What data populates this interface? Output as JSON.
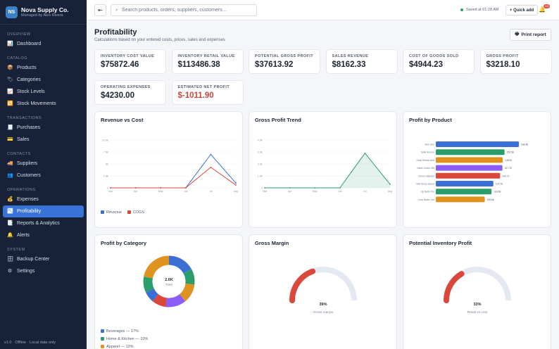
{
  "brand": {
    "logo": "NS",
    "name": "Nova Supply Co.",
    "sub": "Managed by Alex Rivera"
  },
  "sidebar": {
    "sections": [
      {
        "label": "OVERVIEW",
        "items": [
          {
            "label": "Dashboard",
            "icon": "chart-icon"
          }
        ]
      },
      {
        "label": "CATALOG",
        "items": [
          {
            "label": "Products",
            "icon": "box-icon"
          },
          {
            "label": "Categories",
            "icon": "tag-icon"
          },
          {
            "label": "Stock Levels",
            "icon": "trend-icon"
          },
          {
            "label": "Stock Movements",
            "icon": "swap-icon"
          }
        ]
      },
      {
        "label": "TRANSACTIONS",
        "items": [
          {
            "label": "Purchases",
            "icon": "receipt-icon"
          },
          {
            "label": "Sales",
            "icon": "card-icon"
          }
        ]
      },
      {
        "label": "CONTACTS",
        "items": [
          {
            "label": "Suppliers",
            "icon": "truck-icon"
          },
          {
            "label": "Customers",
            "icon": "people-icon"
          }
        ]
      },
      {
        "label": "OPERATIONS",
        "items": [
          {
            "label": "Expenses",
            "icon": "money-bag-icon"
          },
          {
            "label": "Profitability",
            "icon": "profit-chart-icon",
            "active": true
          },
          {
            "label": "Reports & Analytics",
            "icon": "report-icon"
          },
          {
            "label": "Alerts",
            "icon": "bell-icon"
          }
        ]
      },
      {
        "label": "SYSTEM",
        "items": [
          {
            "label": "Backup Center",
            "icon": "database-icon"
          },
          {
            "label": "Settings",
            "icon": "gear-icon"
          }
        ]
      }
    ],
    "footer": "v1.0 · Offline · Local data only"
  },
  "topbar": {
    "collapse_icon": "⇤",
    "search_placeholder": "Search products, orders, suppliers, customers…",
    "saved": "Saved at 01:28 AM",
    "quick_add": "+ Quick add",
    "alert_count": "13"
  },
  "page": {
    "title": "Profitability",
    "subtitle": "Calculations based on your entered costs, prices, sales and expenses",
    "print_label": "Print report"
  },
  "stats": [
    {
      "label": "Inventory cost value",
      "value": "$75872.46"
    },
    {
      "label": "Inventory retail value",
      "value": "$113486.38"
    },
    {
      "label": "Potential gross profit",
      "value": "$37613.92"
    },
    {
      "label": "Sales revenue",
      "value": "$8162.33"
    },
    {
      "label": "Cost of goods sold",
      "value": "$4944.23"
    },
    {
      "label": "Gross profit",
      "value": "$3218.10"
    },
    {
      "label": "Operating expenses",
      "value": "$4230.00"
    },
    {
      "label": "Estimated net profit",
      "value": "$-1011.90",
      "negative": true
    }
  ],
  "colors": {
    "blue": "#3b6fd4",
    "red": "#d9483b",
    "green": "#2a9d6a",
    "orange": "#e0921e",
    "purple": "#8b5cf6",
    "teal": "#1fa57a"
  },
  "cards": {
    "revenue_cost": "Revenue vs Cost",
    "gross_trend": "Gross Profit Trend",
    "by_product": "Profit by Product",
    "by_category": "Profit by Category",
    "gross_margin": "Gross Margin",
    "inventory_profit": "Potential Inventory Profit"
  },
  "chart_data": [
    {
      "type": "line",
      "title": "Revenue vs Cost",
      "x": [
        "Mar",
        "Apr",
        "May",
        "Jun",
        "Jul",
        "Aug"
      ],
      "yticks": [
        "0",
        "2.5K",
        "5K",
        "7.5K",
        "10.0K"
      ],
      "ylim": [
        0,
        10000
      ],
      "series": [
        {
          "name": "Revenue",
          "color": "#3b6fd4",
          "values": [
            0,
            0,
            0,
            0,
            7000,
            1000
          ]
        },
        {
          "name": "COGS",
          "color": "#d9483b",
          "values": [
            0,
            0,
            0,
            0,
            4300,
            600
          ]
        }
      ]
    },
    {
      "type": "area",
      "title": "Gross Profit Trend",
      "x": [
        "Mar",
        "Apr",
        "May",
        "Jun",
        "Jul",
        "Aug"
      ],
      "yticks": [
        "0",
        "1.0K",
        "2.0K",
        "3.0K",
        "4.0K"
      ],
      "ylim": [
        0,
        4000
      ],
      "series": [
        {
          "color": "#2a9d6a",
          "values": [
            0,
            0,
            0,
            0,
            2900,
            300
          ]
        }
      ]
    },
    {
      "type": "bar",
      "title": "Profit by Product",
      "orientation": "horizontal",
      "categories": [
        "Item One",
        "Table Runner",
        "Desk Stretch Belt",
        "Hand Cream Gift",
        "Chrono Blender",
        "Bell Setup Sound",
        "Lip Balm Trio",
        "Coco Butter Gel"
      ],
      "values": [
        184.46,
        152.58,
        148.5,
        147.78,
        142.71,
        127.76,
        123.58,
        108.66
      ],
      "value_labels": [
        "184.46",
        "152.58",
        "148.50",
        "147.78",
        "142.71",
        "127.76",
        "123.58",
        "108.66"
      ],
      "colors": [
        "#3b6fd4",
        "#2a9d6a",
        "#e0921e",
        "#8b5cf6",
        "#d9483b",
        "#3b6fd4",
        "#2a9d6a",
        "#e0921e"
      ],
      "xlim": [
        0,
        200
      ]
    },
    {
      "type": "pie",
      "title": "Profit by Category",
      "center_value": "2.6K",
      "center_label": "Total",
      "slices": [
        {
          "name": "Beverages",
          "value": 17,
          "color": "#3b6fd4"
        },
        {
          "name": "Home & Kitchen",
          "value": 10,
          "color": "#2a9d6a"
        },
        {
          "name": "Apparel",
          "value": 12,
          "color": "#e0921e"
        },
        {
          "name": "",
          "value": 13,
          "color": "#8b5cf6"
        },
        {
          "name": "",
          "value": 9,
          "color": "#d9483b"
        },
        {
          "name": "",
          "value": 7,
          "color": "#3b6fd4"
        },
        {
          "name": "",
          "value": 10,
          "color": "#2a9d6a"
        },
        {
          "name": "",
          "value": 22,
          "color": "#e0921e"
        }
      ],
      "legend": [
        {
          "label": "Beverages — 17%",
          "color": "#3b6fd4"
        },
        {
          "label": "Home & Kitchen — 10%",
          "color": "#2a9d6a"
        },
        {
          "label": "Apparel — 12%",
          "color": "#e0921e"
        }
      ]
    },
    {
      "type": "gauge",
      "title": "Gross Margin",
      "value": 39,
      "value_label": "39%",
      "caption": "Gross margin",
      "color": "#d9483b"
    },
    {
      "type": "gauge",
      "title": "Potential Inventory Profit",
      "value": 33,
      "value_label": "33%",
      "caption": "Retail vs cost",
      "color": "#d9483b"
    }
  ]
}
